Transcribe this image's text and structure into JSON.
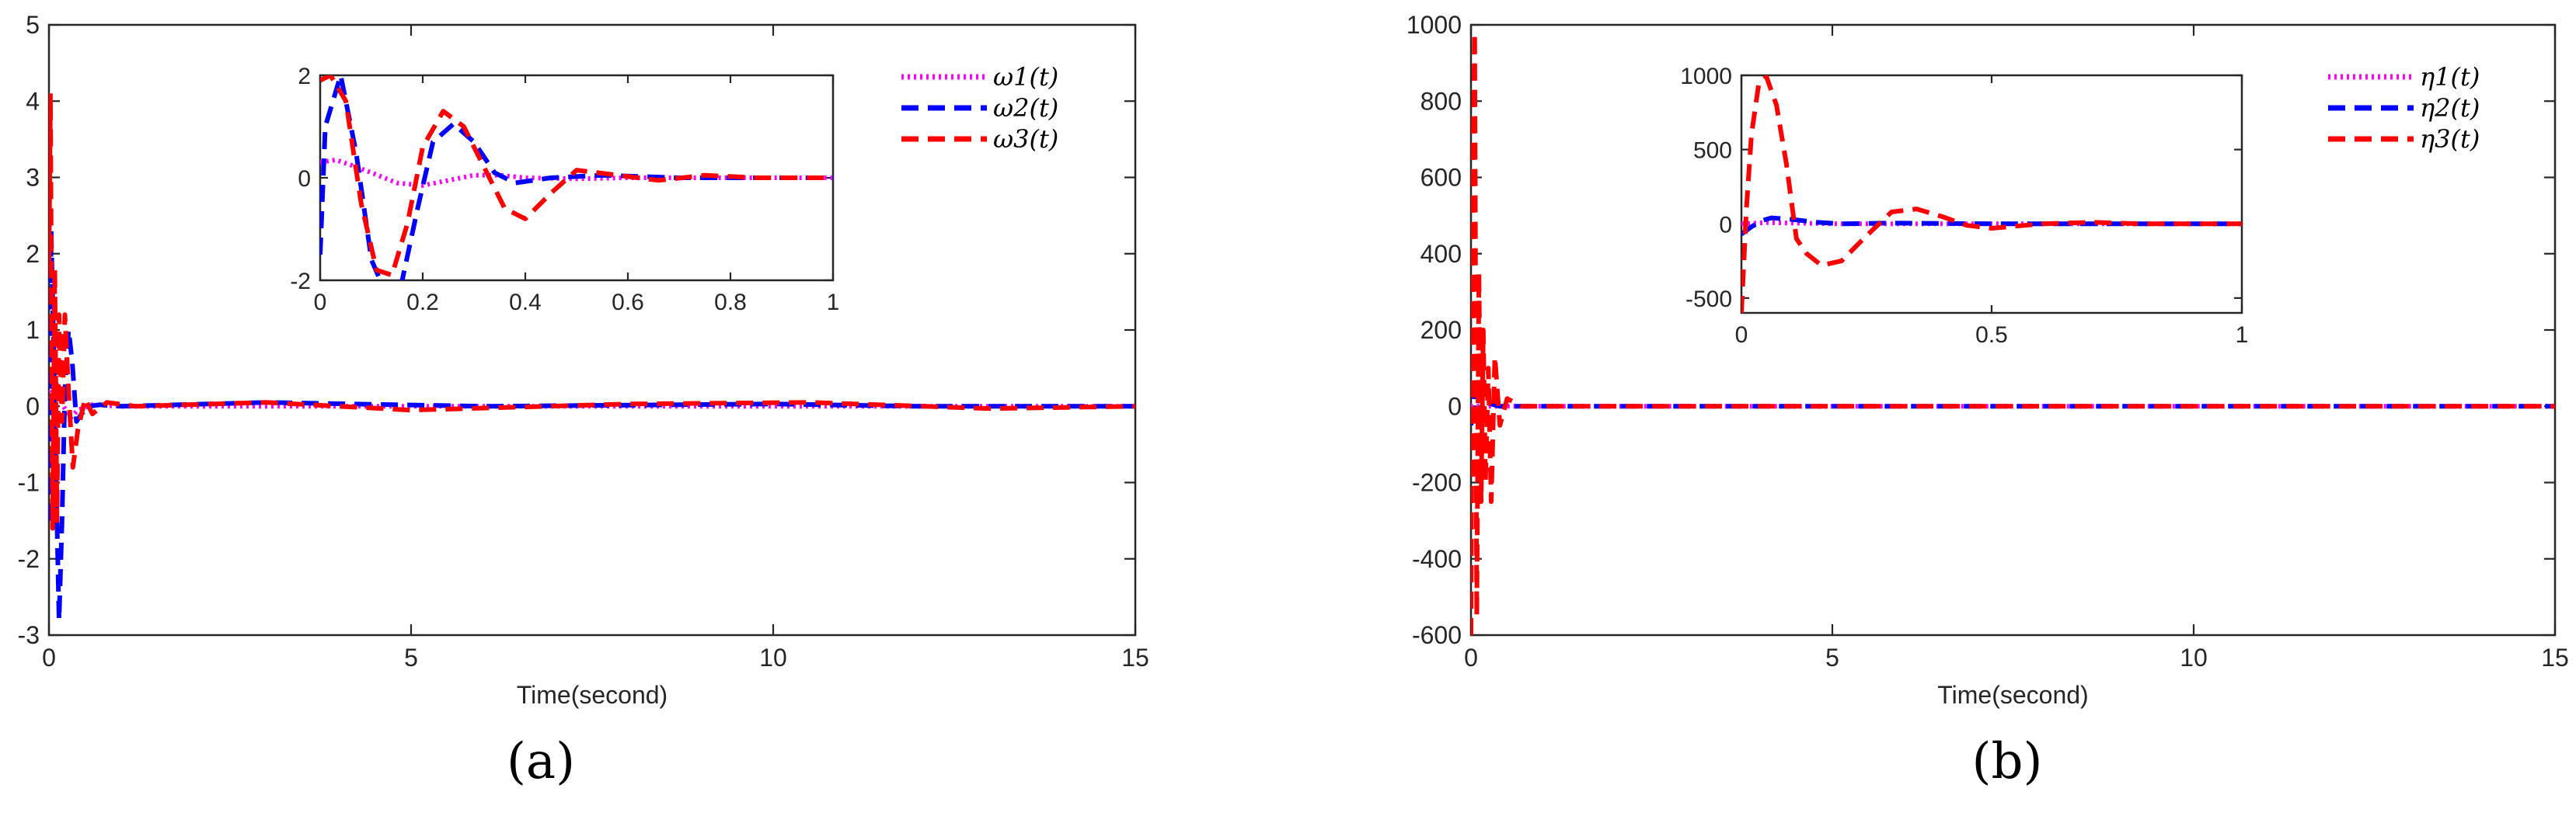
{
  "panel_labels": [
    "(a)",
    "(b)"
  ],
  "legend_a": [
    "ω1(t)",
    "ω2(t)",
    "ω3(t)"
  ],
  "legend_b": [
    "η1(t)",
    "η2(t)",
    "η3(t)"
  ],
  "colors": {
    "s1": "#ff00ff",
    "s2": "#0000ff",
    "s3": "#ff0000"
  },
  "chart_data": [
    {
      "type": "line",
      "panel": "(a)",
      "xlabel": "Time(second)",
      "ylabel": "",
      "xlim": [
        0,
        15
      ],
      "ylim": [
        -3,
        5
      ],
      "xticks": [
        0,
        5,
        10,
        15
      ],
      "yticks": [
        -3,
        -2,
        -1,
        0,
        1,
        2,
        3,
        4,
        5
      ],
      "legend_position": "top-right",
      "series": [
        {
          "name": "ω1(t)",
          "color": "#ff00ff",
          "style": "dotted",
          "x": [
            0,
            0.02,
            0.05,
            0.1,
            0.2,
            0.3,
            0.4,
            0.6,
            1,
            2,
            15
          ],
          "y": [
            0.1,
            0.3,
            0.35,
            0.3,
            0.0,
            -0.15,
            -0.05,
            0.02,
            0,
            0,
            0
          ]
        },
        {
          "name": "ω2(t)",
          "color": "#0000ff",
          "style": "dashed",
          "x": [
            0,
            0.03,
            0.06,
            0.1,
            0.14,
            0.18,
            0.22,
            0.27,
            0.32,
            0.38,
            0.45,
            0.55,
            0.7,
            1,
            3,
            6,
            10,
            12,
            15
          ],
          "y": [
            -1.5,
            2.3,
            1.0,
            -1.0,
            -2.8,
            -1.5,
            0.2,
            1.0,
            0.6,
            -0.2,
            -0.1,
            0.0,
            0.02,
            0.0,
            0.05,
            0.0,
            0.03,
            0.0,
            0.0
          ]
        },
        {
          "name": "ω3(t)",
          "color": "#ff0000",
          "style": "dashed",
          "x": [
            0,
            0.02,
            0.05,
            0.08,
            0.11,
            0.14,
            0.18,
            0.22,
            0.27,
            0.33,
            0.4,
            0.5,
            0.6,
            0.8,
            1.2,
            3,
            5,
            8,
            10.5,
            13,
            15
          ],
          "y": [
            1.8,
            4.1,
            -1.6,
            1.8,
            -1.5,
            1.2,
            -0.2,
            1.2,
            0.2,
            -0.8,
            -0.3,
            0.1,
            -0.1,
            0.05,
            0.0,
            0.05,
            -0.05,
            0.03,
            0.05,
            -0.03,
            0.0
          ]
        }
      ],
      "inset": {
        "xlim": [
          0,
          1
        ],
        "ylim": [
          -2,
          2
        ],
        "xticks": [
          0,
          0.2,
          0.4,
          0.6,
          0.8,
          1
        ],
        "yticks": [
          -2,
          0,
          2
        ],
        "series": [
          {
            "name": "ω1(t)",
            "color": "#ff00ff",
            "style": "dotted",
            "x": [
              0,
              0.03,
              0.06,
              0.1,
              0.15,
              0.2,
              0.25,
              0.3,
              0.35,
              0.4,
              0.5,
              0.6,
              0.8,
              1
            ],
            "y": [
              0.3,
              0.35,
              0.25,
              0.1,
              -0.1,
              -0.15,
              -0.05,
              0.05,
              0.05,
              0.0,
              -0.02,
              0.0,
              0.0,
              0.0
            ]
          },
          {
            "name": "ω2(t)",
            "color": "#0000ff",
            "style": "dashed",
            "x": [
              0,
              0.01,
              0.04,
              0.07,
              0.1,
              0.13,
              0.16,
              0.19,
              0.22,
              0.26,
              0.3,
              0.34,
              0.38,
              0.45,
              0.55,
              0.7,
              0.85,
              1
            ],
            "y": [
              -1.5,
              1.0,
              2.0,
              0.5,
              -1.6,
              -2.3,
              -2.0,
              -0.6,
              0.7,
              1.05,
              0.7,
              0.1,
              -0.1,
              0.0,
              0.05,
              0.0,
              0.0,
              0.0
            ]
          },
          {
            "name": "ω3(t)",
            "color": "#ff0000",
            "style": "dashed",
            "x": [
              0,
              0.02,
              0.05,
              0.08,
              0.11,
              0.14,
              0.17,
              0.2,
              0.24,
              0.28,
              0.32,
              0.36,
              0.4,
              0.45,
              0.5,
              0.58,
              0.66,
              0.75,
              0.85,
              1
            ],
            "y": [
              1.9,
              2.0,
              1.5,
              -0.5,
              -1.8,
              -1.9,
              -0.9,
              0.6,
              1.3,
              1.0,
              0.2,
              -0.6,
              -0.8,
              -0.3,
              0.15,
              0.05,
              -0.05,
              0.05,
              0.0,
              0.0
            ]
          }
        ]
      }
    },
    {
      "type": "line",
      "panel": "(b)",
      "xlabel": "Time(second)",
      "ylabel": "",
      "xlim": [
        0,
        15
      ],
      "ylim": [
        -600,
        1000
      ],
      "xticks": [
        0,
        5,
        10,
        15
      ],
      "yticks": [
        -600,
        -400,
        -200,
        0,
        200,
        400,
        600,
        800,
        1000
      ],
      "legend_position": "top-right",
      "series": [
        {
          "name": "η1(t)",
          "color": "#ff00ff",
          "style": "dotted",
          "x": [
            0,
            0.05,
            0.1,
            0.3,
            1,
            15
          ],
          "y": [
            0,
            5,
            0,
            0,
            0,
            0
          ]
        },
        {
          "name": "η2(t)",
          "color": "#0000ff",
          "style": "dashed",
          "x": [
            0,
            0.02,
            0.05,
            0.1,
            0.2,
            0.4,
            1,
            15
          ],
          "y": [
            -50,
            -20,
            30,
            40,
            10,
            0,
            0,
            0
          ]
        },
        {
          "name": "η3(t)",
          "color": "#ff0000",
          "style": "dashed",
          "x": [
            0,
            0.02,
            0.05,
            0.08,
            0.11,
            0.14,
            0.17,
            0.2,
            0.24,
            0.28,
            0.33,
            0.4,
            0.5,
            0.7,
            1,
            15
          ],
          "y": [
            -600,
            500,
            980,
            -550,
            350,
            -250,
            200,
            -200,
            100,
            -250,
            130,
            -50,
            20,
            0,
            0,
            0
          ]
        }
      ],
      "inset": {
        "xlim": [
          0,
          1
        ],
        "ylim": [
          -600,
          1000
        ],
        "xticks": [
          0,
          0.5,
          1
        ],
        "yticks": [
          -500,
          0,
          500,
          1000
        ],
        "series": [
          {
            "name": "η1(t)",
            "color": "#ff00ff",
            "style": "dotted",
            "x": [
              0,
              0.05,
              0.1,
              0.2,
              0.4,
              0.6,
              1
            ],
            "y": [
              0,
              8,
              5,
              0,
              0,
              0,
              0
            ]
          },
          {
            "name": "η2(t)",
            "color": "#0000ff",
            "style": "dashed",
            "x": [
              0,
              0.02,
              0.04,
              0.06,
              0.1,
              0.15,
              0.2,
              0.3,
              0.5,
              1
            ],
            "y": [
              -70,
              -20,
              20,
              40,
              30,
              10,
              0,
              5,
              0,
              0
            ]
          },
          {
            "name": "η3(t)",
            "color": "#ff0000",
            "style": "dashed",
            "x": [
              0,
              0.01,
              0.02,
              0.035,
              0.05,
              0.07,
              0.09,
              0.11,
              0.13,
              0.16,
              0.2,
              0.25,
              0.3,
              0.35,
              0.4,
              0.45,
              0.5,
              0.6,
              0.7,
              0.8,
              1
            ],
            "y": [
              -600,
              100,
              600,
              950,
              990,
              800,
              400,
              -100,
              -200,
              -280,
              -250,
              -80,
              80,
              100,
              50,
              -10,
              -30,
              0,
              10,
              0,
              0
            ]
          }
        ]
      }
    }
  ]
}
